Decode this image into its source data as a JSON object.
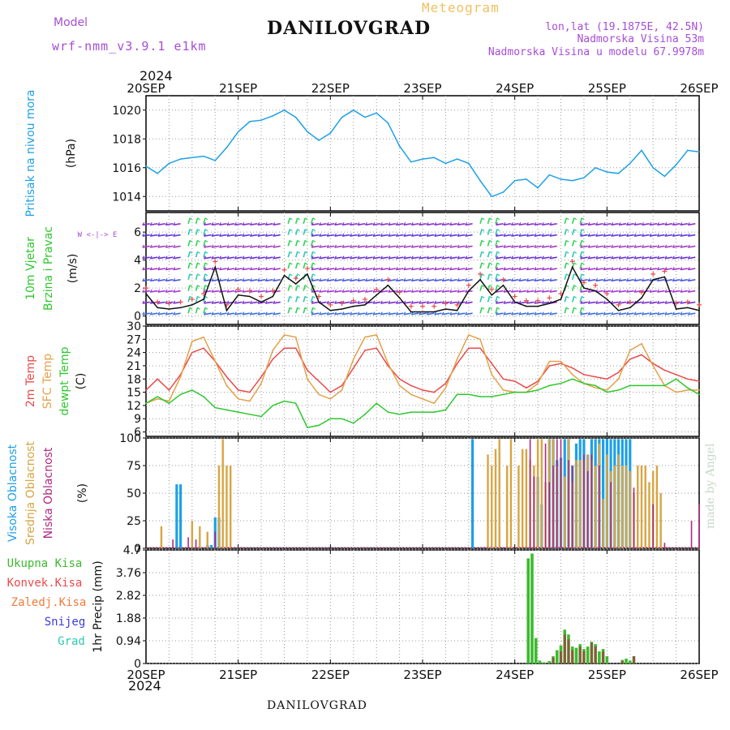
{
  "header": {
    "model_label": "Model",
    "model_name": "wrf-nmm_v3.9.1 e1km",
    "station": "DANILOVGRAD",
    "meteogram_label": "Meteogram",
    "lonlat": "lon,lat (19.1875E, 42.5N)",
    "elevation": "Nadmorska Visina 53m",
    "elevation_model": "Nadmorska Visina u modelu 67.9978m",
    "year_top": "2024",
    "year_bottom": "2024",
    "footer_station": "DANILOVGRAD",
    "watermark": "made by Angel"
  },
  "colors": {
    "pressure": "#1ea0e6",
    "wind_title": "#2ec82e",
    "wind_dir": "#a64dd6",
    "temp2m": "#e84b4b",
    "sfc": "#e3a14a",
    "dew": "#2ec82e",
    "cloud_high": "#1ea0e6",
    "cloud_mid": "#d9a441",
    "cloud_low": "#b0287f",
    "precip_total": "#3cba2e",
    "precip_conv": "#e84b4b",
    "precip_frz": "#f07b3a",
    "snow": "#3b3bd9",
    "hail": "#2ec8b0"
  },
  "time_axis": [
    "20SEP",
    "21SEP",
    "22SEP",
    "23SEP",
    "24SEP",
    "25SEP",
    "26SEP"
  ],
  "chart_data": [
    {
      "type": "line",
      "title": "",
      "ylabel_lines": [
        "Pritisak na nivou mora",
        "(hPa)"
      ],
      "x_unit": "hours from 20SEP 00",
      "ylim": [
        1013,
        1021
      ],
      "yticks": [
        "1014",
        "1016",
        "1018",
        "1020"
      ],
      "ytick_values": [
        1014,
        1016,
        1018,
        1020
      ],
      "series": [
        {
          "name": "",
          "x": [
            0,
            3,
            6,
            9,
            12,
            15,
            18,
            21,
            24,
            27,
            30,
            33,
            36,
            39,
            42,
            45,
            48,
            51,
            54,
            57,
            60,
            63,
            66,
            69,
            72,
            75,
            78,
            81,
            84,
            87,
            90,
            93,
            96,
            99,
            102,
            105,
            108,
            111,
            114,
            117,
            120,
            123,
            126,
            129,
            132,
            135,
            138,
            141,
            144
          ],
          "y": [
            1016.1,
            1015.6,
            1016.3,
            1016.6,
            1016.7,
            1016.8,
            1016.5,
            1017.4,
            1018.5,
            1019.2,
            1019.3,
            1019.6,
            1020.0,
            1019.5,
            1018.5,
            1017.9,
            1018.4,
            1019.5,
            1020.0,
            1019.5,
            1019.8,
            1019.1,
            1017.5,
            1016.4,
            1016.6,
            1016.7,
            1016.3,
            1016.6,
            1016.3,
            1015.1,
            1014.0,
            1014.3,
            1015.1,
            1015.2,
            1014.6,
            1015.5,
            1015.2,
            1015.1,
            1015.3,
            1016.0,
            1015.7,
            1015.6,
            1016.3,
            1017.2,
            1016.0,
            1015.4,
            1016.2,
            1017.2,
            1017.1
          ]
        }
      ]
    },
    {
      "type": "line",
      "title": "",
      "ylabel_lines": [
        "10m Vjetar",
        "Brzina i Pravac",
        "(m/s)"
      ],
      "compass_label": "W <-|-> E",
      "ylim": [
        -0.6,
        7.4
      ],
      "yticks": [
        "0",
        "2",
        "4",
        "6"
      ],
      "ytick_values": [
        0,
        2,
        4,
        6
      ],
      "series": [
        {
          "name": "",
          "x": [
            0,
            3,
            6,
            9,
            12,
            15,
            18,
            21,
            24,
            27,
            30,
            33,
            36,
            39,
            42,
            45,
            48,
            51,
            54,
            57,
            60,
            63,
            66,
            69,
            72,
            75,
            78,
            81,
            84,
            87,
            90,
            93,
            96,
            99,
            102,
            105,
            108,
            111,
            114,
            117,
            120,
            123,
            126,
            129,
            132,
            135,
            138,
            141,
            144
          ],
          "y": [
            1.6,
            0.6,
            0.5,
            0.6,
            0.8,
            1.2,
            3.5,
            0.4,
            1.5,
            1.4,
            1.0,
            1.4,
            2.9,
            2.3,
            3.0,
            1.0,
            0.4,
            0.5,
            0.7,
            0.8,
            1.5,
            2.2,
            1.3,
            0.3,
            0.3,
            0.3,
            0.5,
            0.4,
            1.8,
            2.6,
            1.5,
            2.2,
            1.0,
            0.7,
            0.7,
            0.9,
            1.2,
            3.5,
            2.0,
            1.8,
            1.2,
            0.4,
            0.6,
            1.3,
            2.6,
            2.8,
            0.5,
            0.6,
            0.4
          ]
        }
      ]
    },
    {
      "type": "line",
      "title": "",
      "ylabel_lines": [
        "2m Temp",
        "SFC Temp",
        "dewpt Temp",
        "(C)"
      ],
      "ylim": [
        5,
        30
      ],
      "yticks": [
        "6",
        "9",
        "12",
        "15",
        "18",
        "21",
        "24",
        "27",
        "30"
      ],
      "ytick_values": [
        6,
        9,
        12,
        15,
        18,
        21,
        24,
        27,
        30
      ],
      "series": [
        {
          "name": "2m Temp",
          "x": [
            0,
            3,
            6,
            9,
            12,
            15,
            18,
            21,
            24,
            27,
            30,
            33,
            36,
            39,
            42,
            45,
            48,
            51,
            54,
            57,
            60,
            63,
            66,
            69,
            72,
            75,
            78,
            81,
            84,
            87,
            90,
            93,
            96,
            99,
            102,
            105,
            108,
            111,
            114,
            117,
            120,
            123,
            126,
            129,
            132,
            135,
            138,
            141,
            144
          ],
          "y": [
            15.5,
            18.0,
            15.5,
            19.0,
            24.0,
            25.0,
            22.0,
            18.5,
            15.5,
            15.0,
            18.5,
            22.5,
            25.0,
            25.0,
            20.0,
            17.5,
            15.0,
            16.5,
            20.5,
            24.5,
            25.0,
            21.0,
            18.0,
            16.5,
            15.5,
            15.0,
            17.0,
            21.5,
            25.0,
            25.0,
            21.5,
            18.0,
            17.5,
            16.0,
            17.5,
            21.0,
            21.5,
            20.5,
            19.0,
            18.5,
            18.0,
            19.5,
            22.5,
            23.5,
            21.5,
            20.0,
            19.0,
            18.0,
            17.5
          ]
        },
        {
          "name": "SFC Temp",
          "x": [
            0,
            3,
            6,
            9,
            12,
            15,
            18,
            21,
            24,
            27,
            30,
            33,
            36,
            39,
            42,
            45,
            48,
            51,
            54,
            57,
            60,
            63,
            66,
            69,
            72,
            75,
            78,
            81,
            84,
            87,
            90,
            93,
            96,
            99,
            102,
            105,
            108,
            111,
            114,
            117,
            120,
            123,
            126,
            129,
            132,
            135,
            138,
            141,
            144
          ],
          "y": [
            12.5,
            13.5,
            13.0,
            18.5,
            26.5,
            27.5,
            22.0,
            16.5,
            13.5,
            13.0,
            17.0,
            24.5,
            28.0,
            27.5,
            18.0,
            14.5,
            13.5,
            15.5,
            22.5,
            27.5,
            28.0,
            21.5,
            16.5,
            14.5,
            13.5,
            12.5,
            16.0,
            22.5,
            28.0,
            27.0,
            19.0,
            15.5,
            15.0,
            15.0,
            17.0,
            22.0,
            22.0,
            19.0,
            17.0,
            16.0,
            15.5,
            18.0,
            24.5,
            26.0,
            21.0,
            16.5,
            15.0,
            15.5,
            15.5
          ]
        },
        {
          "name": "dewpt Temp",
          "x": [
            0,
            3,
            6,
            9,
            12,
            15,
            18,
            21,
            24,
            27,
            30,
            33,
            36,
            39,
            42,
            45,
            48,
            51,
            54,
            57,
            60,
            63,
            66,
            69,
            72,
            75,
            78,
            81,
            84,
            87,
            90,
            93,
            96,
            99,
            102,
            105,
            108,
            111,
            114,
            117,
            120,
            123,
            126,
            129,
            132,
            135,
            138,
            141,
            144
          ],
          "y": [
            12.5,
            14.0,
            12.5,
            14.5,
            15.5,
            14.0,
            11.5,
            11.0,
            10.5,
            10.0,
            9.5,
            12.0,
            13.0,
            12.5,
            7.0,
            7.5,
            9.0,
            9.0,
            8.0,
            10.0,
            12.5,
            10.5,
            10.0,
            10.5,
            10.5,
            10.5,
            11.0,
            14.5,
            14.5,
            14.0,
            14.0,
            14.5,
            15.0,
            15.0,
            15.5,
            16.5,
            17.0,
            18.0,
            17.0,
            16.5,
            15.0,
            15.5,
            16.5,
            16.5,
            16.5,
            16.5,
            18.0,
            16.0,
            14.5
          ]
        }
      ]
    },
    {
      "type": "bar",
      "title": "",
      "ylabel_lines": [
        "Visoka Oblacnost",
        "Srednja Oblacnost",
        "Niska Oblacnost",
        "(%)"
      ],
      "ylim": [
        0,
        100
      ],
      "yticks": [
        "0",
        "25",
        "50",
        "75",
        "100"
      ],
      "ytick_values": [
        0,
        25,
        50,
        75,
        100
      ],
      "series": [
        {
          "name": "Visoka Oblacnost",
          "x": [
            8,
            9,
            16,
            17,
            18,
            19,
            85,
            102,
            103,
            105,
            106,
            107,
            108,
            109,
            110,
            111,
            112,
            113,
            114,
            115,
            116,
            117,
            118,
            119,
            120,
            121,
            122,
            123,
            124,
            125,
            126
          ],
          "values": [
            58,
            58,
            3,
            3,
            28,
            28,
            99,
            65,
            40,
            99,
            99,
            80,
            82,
            99,
            99,
            75,
            95,
            99,
            99,
            85,
            99,
            99,
            99,
            99,
            99,
            99,
            99,
            99,
            99,
            99,
            99
          ]
        },
        {
          "name": "Srednja Oblacnost",
          "x": [
            4,
            12,
            14,
            16,
            19,
            20,
            21,
            22,
            89,
            90,
            91,
            92,
            94,
            95,
            97,
            98,
            99,
            100,
            101,
            102,
            103,
            104,
            105,
            106,
            107,
            108,
            109,
            110,
            111,
            112,
            113,
            114,
            115,
            116,
            117,
            118,
            119,
            120,
            121,
            122,
            123,
            124,
            125,
            126,
            127,
            128,
            129,
            130,
            131,
            132,
            133,
            134
          ],
          "values": [
            20,
            25,
            20,
            15,
            75,
            99,
            75,
            75,
            85,
            75,
            90,
            99,
            75,
            99,
            75,
            90,
            90,
            80,
            75,
            99,
            99,
            60,
            99,
            99,
            75,
            80,
            65,
            99,
            60,
            80,
            80,
            80,
            85,
            80,
            75,
            95,
            45,
            85,
            70,
            75,
            85,
            75,
            75,
            70,
            50,
            75,
            75,
            75,
            60,
            70,
            75,
            50
          ]
        },
        {
          "name": "Niska Oblacnost",
          "x": [
            7,
            11,
            13,
            18,
            100,
            101,
            104,
            105,
            106,
            107,
            108,
            110,
            111,
            114,
            115,
            116,
            118,
            121,
            127,
            132,
            135,
            142,
            144
          ],
          "values": [
            8,
            10,
            8,
            15,
            99,
            65,
            95,
            60,
            75,
            99,
            99,
            80,
            75,
            85,
            70,
            85,
            75,
            60,
            55,
            40,
            5,
            25,
            40
          ]
        }
      ]
    },
    {
      "type": "bar",
      "title": "",
      "ylabel_lines": [
        "1hr Precip (mm)"
      ],
      "legend_lines": [
        "Ukupna Kisa",
        "Konvek.Kisa",
        "Zaledj.Kisa",
        "Snijeg",
        "Grad"
      ],
      "ylim": [
        0,
        4.7
      ],
      "yticks": [
        "0",
        "0.94",
        "1.88",
        "2.82",
        "3.76",
        "4.7"
      ],
      "ytick_values": [
        0,
        0.94,
        1.88,
        2.82,
        3.76,
        4.7
      ],
      "series": [
        {
          "name": "Ukupna Kisa",
          "x": [
            99.5,
            100.5,
            101.5,
            102.5,
            103.5,
            105,
            106,
            107,
            108,
            109,
            110,
            111,
            112,
            113,
            114,
            115,
            116,
            117,
            118,
            119,
            120,
            124,
            125,
            126,
            127
          ],
          "values": [
            4.35,
            4.55,
            1.05,
            0.12,
            0.05,
            0.1,
            0.3,
            0.55,
            0.75,
            1.4,
            1.2,
            0.7,
            0.65,
            0.8,
            0.6,
            0.7,
            0.9,
            0.8,
            0.5,
            0.6,
            0.3,
            0.15,
            0.2,
            0.12,
            0.3
          ]
        },
        {
          "name": "Konvek.Kisa",
          "x": [
            106,
            108,
            109,
            110,
            111,
            113,
            114,
            116,
            117,
            119,
            124,
            127
          ],
          "values": [
            0.25,
            0.5,
            1.2,
            1.0,
            0.55,
            0.7,
            0.5,
            0.85,
            0.7,
            0.5,
            0.1,
            0.3
          ]
        }
      ]
    }
  ]
}
